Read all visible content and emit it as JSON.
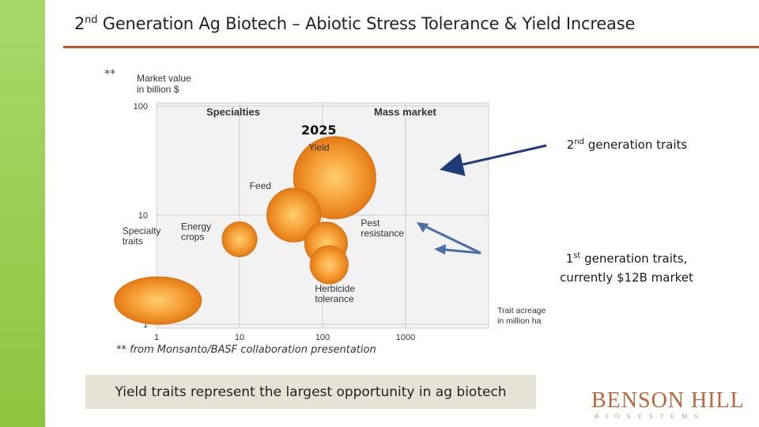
{
  "slide": {
    "title_prefix": "2",
    "title_sup": "nd",
    "title_rest": " Generation Ag Biotech – Abiotic Stress Tolerance & Yield Increase",
    "callout_2nd_num": "2",
    "callout_2nd_sup": "nd",
    "callout_2nd_rest": " generation traits",
    "callout_1st_num": "1",
    "callout_1st_sup": "st",
    "callout_1st_line1": " generation traits,",
    "callout_1st_line2": "currently $12B market",
    "caption": "Yield traits represent the largest opportunity in ag biotech",
    "logo_main": "BENSON HILL",
    "logo_sub": "BIOSYSTEMS",
    "colors": {
      "sidebar": "#8cc63f",
      "rule": "#c0582c",
      "bubble": "#f08c1e",
      "arrow_dark": "#1f3b7a",
      "arrow_light": "#4a6fa5"
    }
  },
  "chart_data": {
    "type": "scatter",
    "marker": "**",
    "ylabel": "Market value in billion $",
    "xlabel": "Trait acreage in million ha",
    "x_scale": "log",
    "y_scale": "log",
    "xlim": [
      1,
      1000
    ],
    "ylim": [
      1,
      100
    ],
    "x_ticks": [
      "1",
      "10",
      "100",
      "1000"
    ],
    "y_ticks": [
      "100",
      "10",
      "1"
    ],
    "region_labels": [
      "Specialties",
      "Mass market"
    ],
    "year_label": "2025",
    "footnote": "** from Monsanto/BASF collaboration presentation",
    "grid": true,
    "series": [
      {
        "label": "Yield",
        "x": 140,
        "y": 22
      },
      {
        "label": "Feed",
        "x": 45,
        "y": 10
      },
      {
        "label": "Pest resistance",
        "x": 110,
        "y": 5.5
      },
      {
        "label": "Energy crops",
        "x": 10,
        "y": 6
      },
      {
        "label": "Herbicide tolerance",
        "x": 120,
        "y": 3.5
      },
      {
        "label": "Specialty traits",
        "x": 0.6,
        "y": 2.3
      }
    ]
  }
}
